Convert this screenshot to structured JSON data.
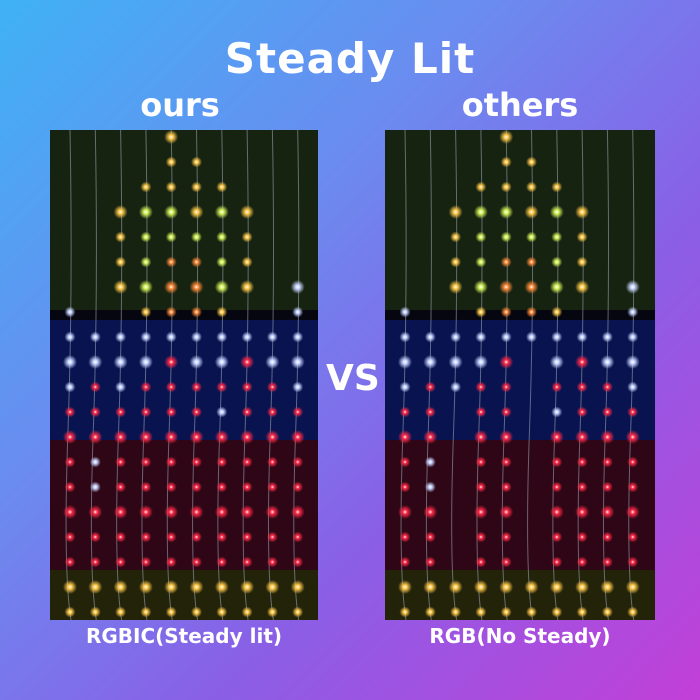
{
  "title": "Steady Lit",
  "left": {
    "label": "ours",
    "caption": "RGBIC(Steady lit)"
  },
  "right": {
    "label": "others",
    "caption": "RGB(No Steady)"
  },
  "vs": "VS",
  "colors": {
    "yellow": "#ffc94a",
    "green": "#d4f25a",
    "orange": "#ff8a3a",
    "blue": "#c8d4ff",
    "red": "#ff2a48"
  }
}
